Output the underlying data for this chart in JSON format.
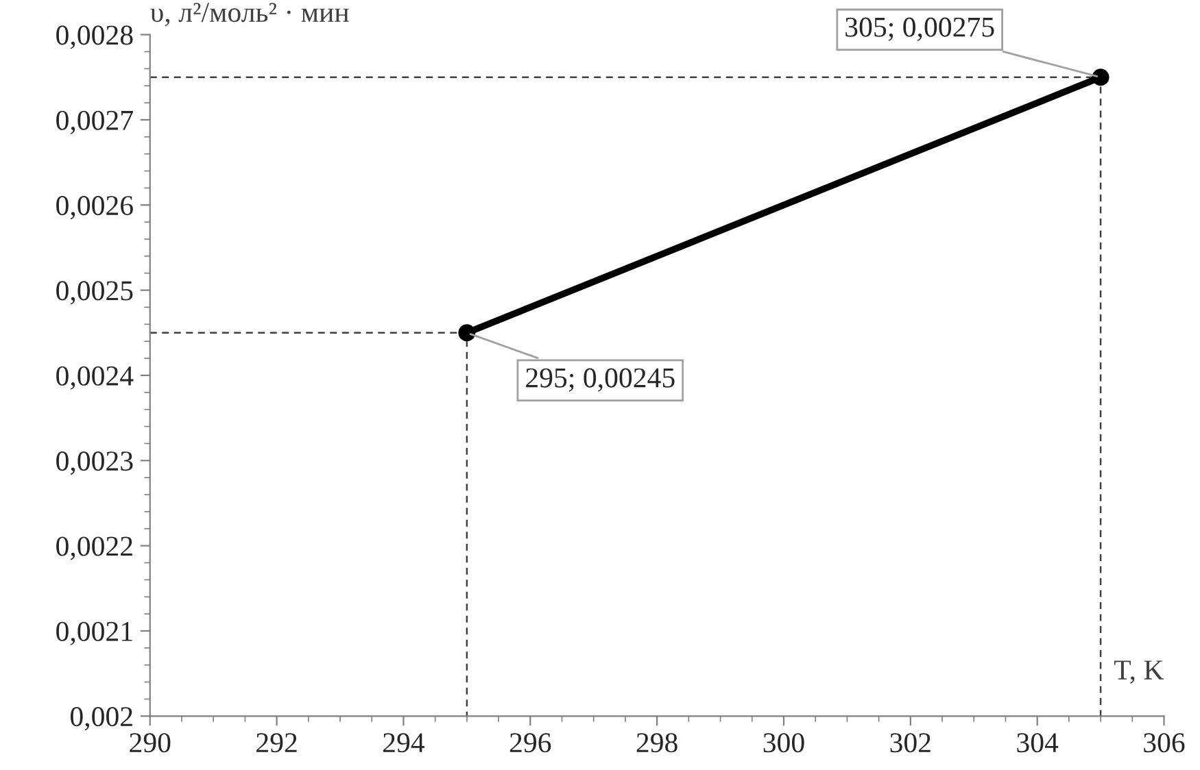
{
  "chart_data": {
    "type": "line",
    "xlabel": "T, K",
    "ylabel": "υ, л²/моль² · мин",
    "x": [
      295,
      305
    ],
    "series": [
      {
        "color": "#000000",
        "values": [
          0.00245,
          0.00275
        ],
        "marker": "circle",
        "line_style": "solid"
      },
      {
        "type": "line",
        "color": "#404040",
        "x": [
          290,
          295,
          295
        ],
        "values": [
          0.00245,
          0.00245,
          0.002
        ],
        "marker": "none",
        "line_style": "dashed"
      },
      {
        "type": "line",
        "color": "#404040",
        "x": [
          290,
          305,
          305
        ],
        "values": [
          0.00275,
          0.00275,
          0.002
        ],
        "marker": "none",
        "line_style": "dashed"
      }
    ],
    "xlim": [
      290,
      306
    ],
    "xticks": [
      290,
      292,
      294,
      296,
      298,
      300,
      302,
      304,
      306
    ],
    "ylim": [
      0.002,
      0.0028
    ],
    "yticks": [
      {
        "value": 0.002,
        "label": "0,002"
      },
      {
        "value": 0.0021,
        "label": "0,0021"
      },
      {
        "value": 0.0022,
        "label": "0,0022"
      },
      {
        "value": 0.0023,
        "label": "0,0023"
      },
      {
        "value": 0.0024,
        "label": "0,0024"
      },
      {
        "value": 0.0025,
        "label": "0,0025"
      },
      {
        "value": 0.0026,
        "label": "0,0026"
      },
      {
        "value": 0.0027,
        "label": "0,0027"
      },
      {
        "value": 0.0028,
        "label": "0,0028"
      }
    ],
    "annotations": [
      {
        "text": "305; 0,00275",
        "x": 305,
        "y": 0.00275
      },
      {
        "text": "295; 0,00245",
        "x": 295,
        "y": 0.00245
      }
    ],
    "grid": false,
    "legend": false
  }
}
